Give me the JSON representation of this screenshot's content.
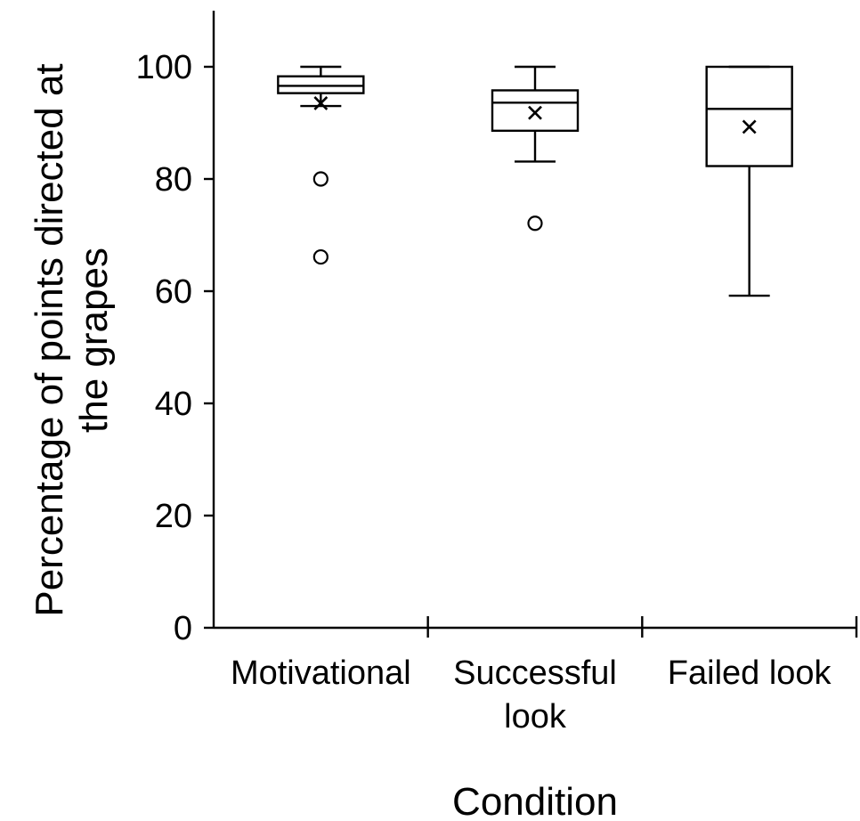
{
  "chart_data": {
    "type": "box",
    "title": "",
    "xlabel": "Condition",
    "ylabel_lines": [
      "Percentage of points directed at",
      "the grapes"
    ],
    "ylim": [
      0,
      110
    ],
    "yticks": [
      0,
      20,
      40,
      60,
      80,
      100
    ],
    "grid": false,
    "legend": "none",
    "categories": [
      {
        "label_lines": [
          "Motivational"
        ],
        "whisker_low": 93,
        "q1": 95.3,
        "median": 96.6,
        "q3": 98.3,
        "whisker_high": 100,
        "mean": 93.5,
        "outliers": [
          80,
          66.1
        ]
      },
      {
        "label_lines": [
          "Successful",
          "look"
        ],
        "whisker_low": 83.1,
        "q1": 88.6,
        "median": 93.6,
        "q3": 95.8,
        "whisker_high": 100,
        "mean": 91.8,
        "outliers": [
          72.1
        ]
      },
      {
        "label_lines": [
          "Failed look"
        ],
        "whisker_low": 59.2,
        "q1": 82.3,
        "median": 92.5,
        "q3": 100,
        "whisker_high": 100,
        "mean": 89.3,
        "outliers": []
      }
    ]
  }
}
